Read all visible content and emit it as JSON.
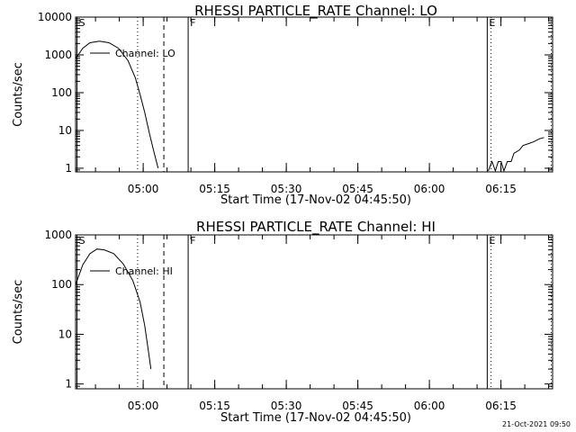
{
  "timestamp": "21-Oct-2021 09:50",
  "chart_data": [
    {
      "type": "line",
      "title": "RHESSI PARTICLE_RATE Channel: LO",
      "xlabel": "Start Time (17-Nov-02 04:45:50)",
      "ylabel": "Counts/sec",
      "yscale": "log",
      "ylim": [
        0.8,
        10000
      ],
      "xlim_minutes": [
        0,
        100
      ],
      "yticks": [
        {
          "value": 1,
          "label": "1"
        },
        {
          "value": 10,
          "label": "10"
        },
        {
          "value": 100,
          "label": "100"
        },
        {
          "value": 1000,
          "label": "1000"
        },
        {
          "value": 10000,
          "label": "10000"
        }
      ],
      "xticks": [
        {
          "minutes": 14.17,
          "label": "05:00"
        },
        {
          "minutes": 29.17,
          "label": "05:15"
        },
        {
          "minutes": 44.17,
          "label": "05:30"
        },
        {
          "minutes": 59.17,
          "label": "05:45"
        },
        {
          "minutes": 74.17,
          "label": "06:00"
        },
        {
          "minutes": 89.17,
          "label": "06:15"
        }
      ],
      "legend": {
        "label": "Channel: LO",
        "position": "top-left"
      },
      "series": [
        {
          "name": "Channel: LO",
          "segments": [
            [
              [
                0,
                800
              ],
              [
                1.5,
                1500
              ],
              [
                3,
                2100
              ],
              [
                5,
                2300
              ],
              [
                7,
                2100
              ],
              [
                9,
                1500
              ],
              [
                11,
                700
              ],
              [
                12.5,
                250
              ],
              [
                13.5,
                90
              ],
              [
                14.5,
                30
              ],
              [
                15.5,
                8
              ],
              [
                16.5,
                2.5
              ],
              [
                17.3,
                1
              ]
            ],
            [
              [
                86.5,
                0.85
              ],
              [
                87.3,
                1.5
              ],
              [
                88,
                0.85
              ],
              [
                88.6,
                1.5
              ],
              [
                89.2,
                1.5
              ],
              [
                89.8,
                0.85
              ],
              [
                90.5,
                1.5
              ],
              [
                91.3,
                1.5
              ],
              [
                91.9,
                2.5
              ],
              [
                93,
                3
              ],
              [
                93.8,
                4
              ],
              [
                95,
                4.5
              ],
              [
                96,
                5
              ],
              [
                97.2,
                6
              ],
              [
                98.2,
                6.5
              ]
            ]
          ]
        }
      ],
      "markers": [
        {
          "minutes": 0.3,
          "style": "solid",
          "label": "S"
        },
        {
          "minutes": 13,
          "style": "dotted",
          "label": ""
        },
        {
          "minutes": 18.5,
          "style": "dashed",
          "label": ""
        },
        {
          "minutes": 23.6,
          "style": "solid",
          "label": "F"
        },
        {
          "minutes": 86.3,
          "style": "solid",
          "label": "E"
        },
        {
          "minutes": 87.1,
          "style": "dotted",
          "label": ""
        },
        {
          "minutes": 99.7,
          "style": "dotted",
          "label": ""
        }
      ]
    },
    {
      "type": "line",
      "title": "RHESSI PARTICLE_RATE Channel: HI",
      "xlabel": "Start Time (17-Nov-02 04:45:50)",
      "ylabel": "Counts/sec",
      "yscale": "log",
      "ylim": [
        0.8,
        1000
      ],
      "xlim_minutes": [
        0,
        100
      ],
      "yticks": [
        {
          "value": 1,
          "label": "1"
        },
        {
          "value": 10,
          "label": "10"
        },
        {
          "value": 100,
          "label": "100"
        },
        {
          "value": 1000,
          "label": "1000"
        }
      ],
      "xticks": [
        {
          "minutes": 14.17,
          "label": "05:00"
        },
        {
          "minutes": 29.17,
          "label": "05:15"
        },
        {
          "minutes": 44.17,
          "label": "05:30"
        },
        {
          "minutes": 59.17,
          "label": "05:45"
        },
        {
          "minutes": 74.17,
          "label": "06:00"
        },
        {
          "minutes": 89.17,
          "label": "06:15"
        }
      ],
      "legend": {
        "label": "Channel: HI",
        "position": "top-left"
      },
      "series": [
        {
          "name": "Channel: HI",
          "segments": [
            [
              [
                0,
                100
              ],
              [
                1.5,
                250
              ],
              [
                3,
                420
              ],
              [
                4.5,
                520
              ],
              [
                6,
                500
              ],
              [
                8,
                420
              ],
              [
                10,
                260
              ],
              [
                12,
                120
              ],
              [
                13.5,
                45
              ],
              [
                14.5,
                15
              ],
              [
                15.2,
                5
              ],
              [
                15.8,
                2
              ]
            ]
          ]
        }
      ],
      "markers": [
        {
          "minutes": 0.3,
          "style": "solid",
          "label": "S"
        },
        {
          "minutes": 13,
          "style": "dotted",
          "label": ""
        },
        {
          "minutes": 18.5,
          "style": "dashed",
          "label": ""
        },
        {
          "minutes": 23.6,
          "style": "solid",
          "label": "F"
        },
        {
          "minutes": 86.3,
          "style": "solid",
          "label": "E"
        },
        {
          "minutes": 87.1,
          "style": "dotted",
          "label": ""
        },
        {
          "minutes": 99.7,
          "style": "dotted",
          "label": ""
        }
      ]
    }
  ]
}
